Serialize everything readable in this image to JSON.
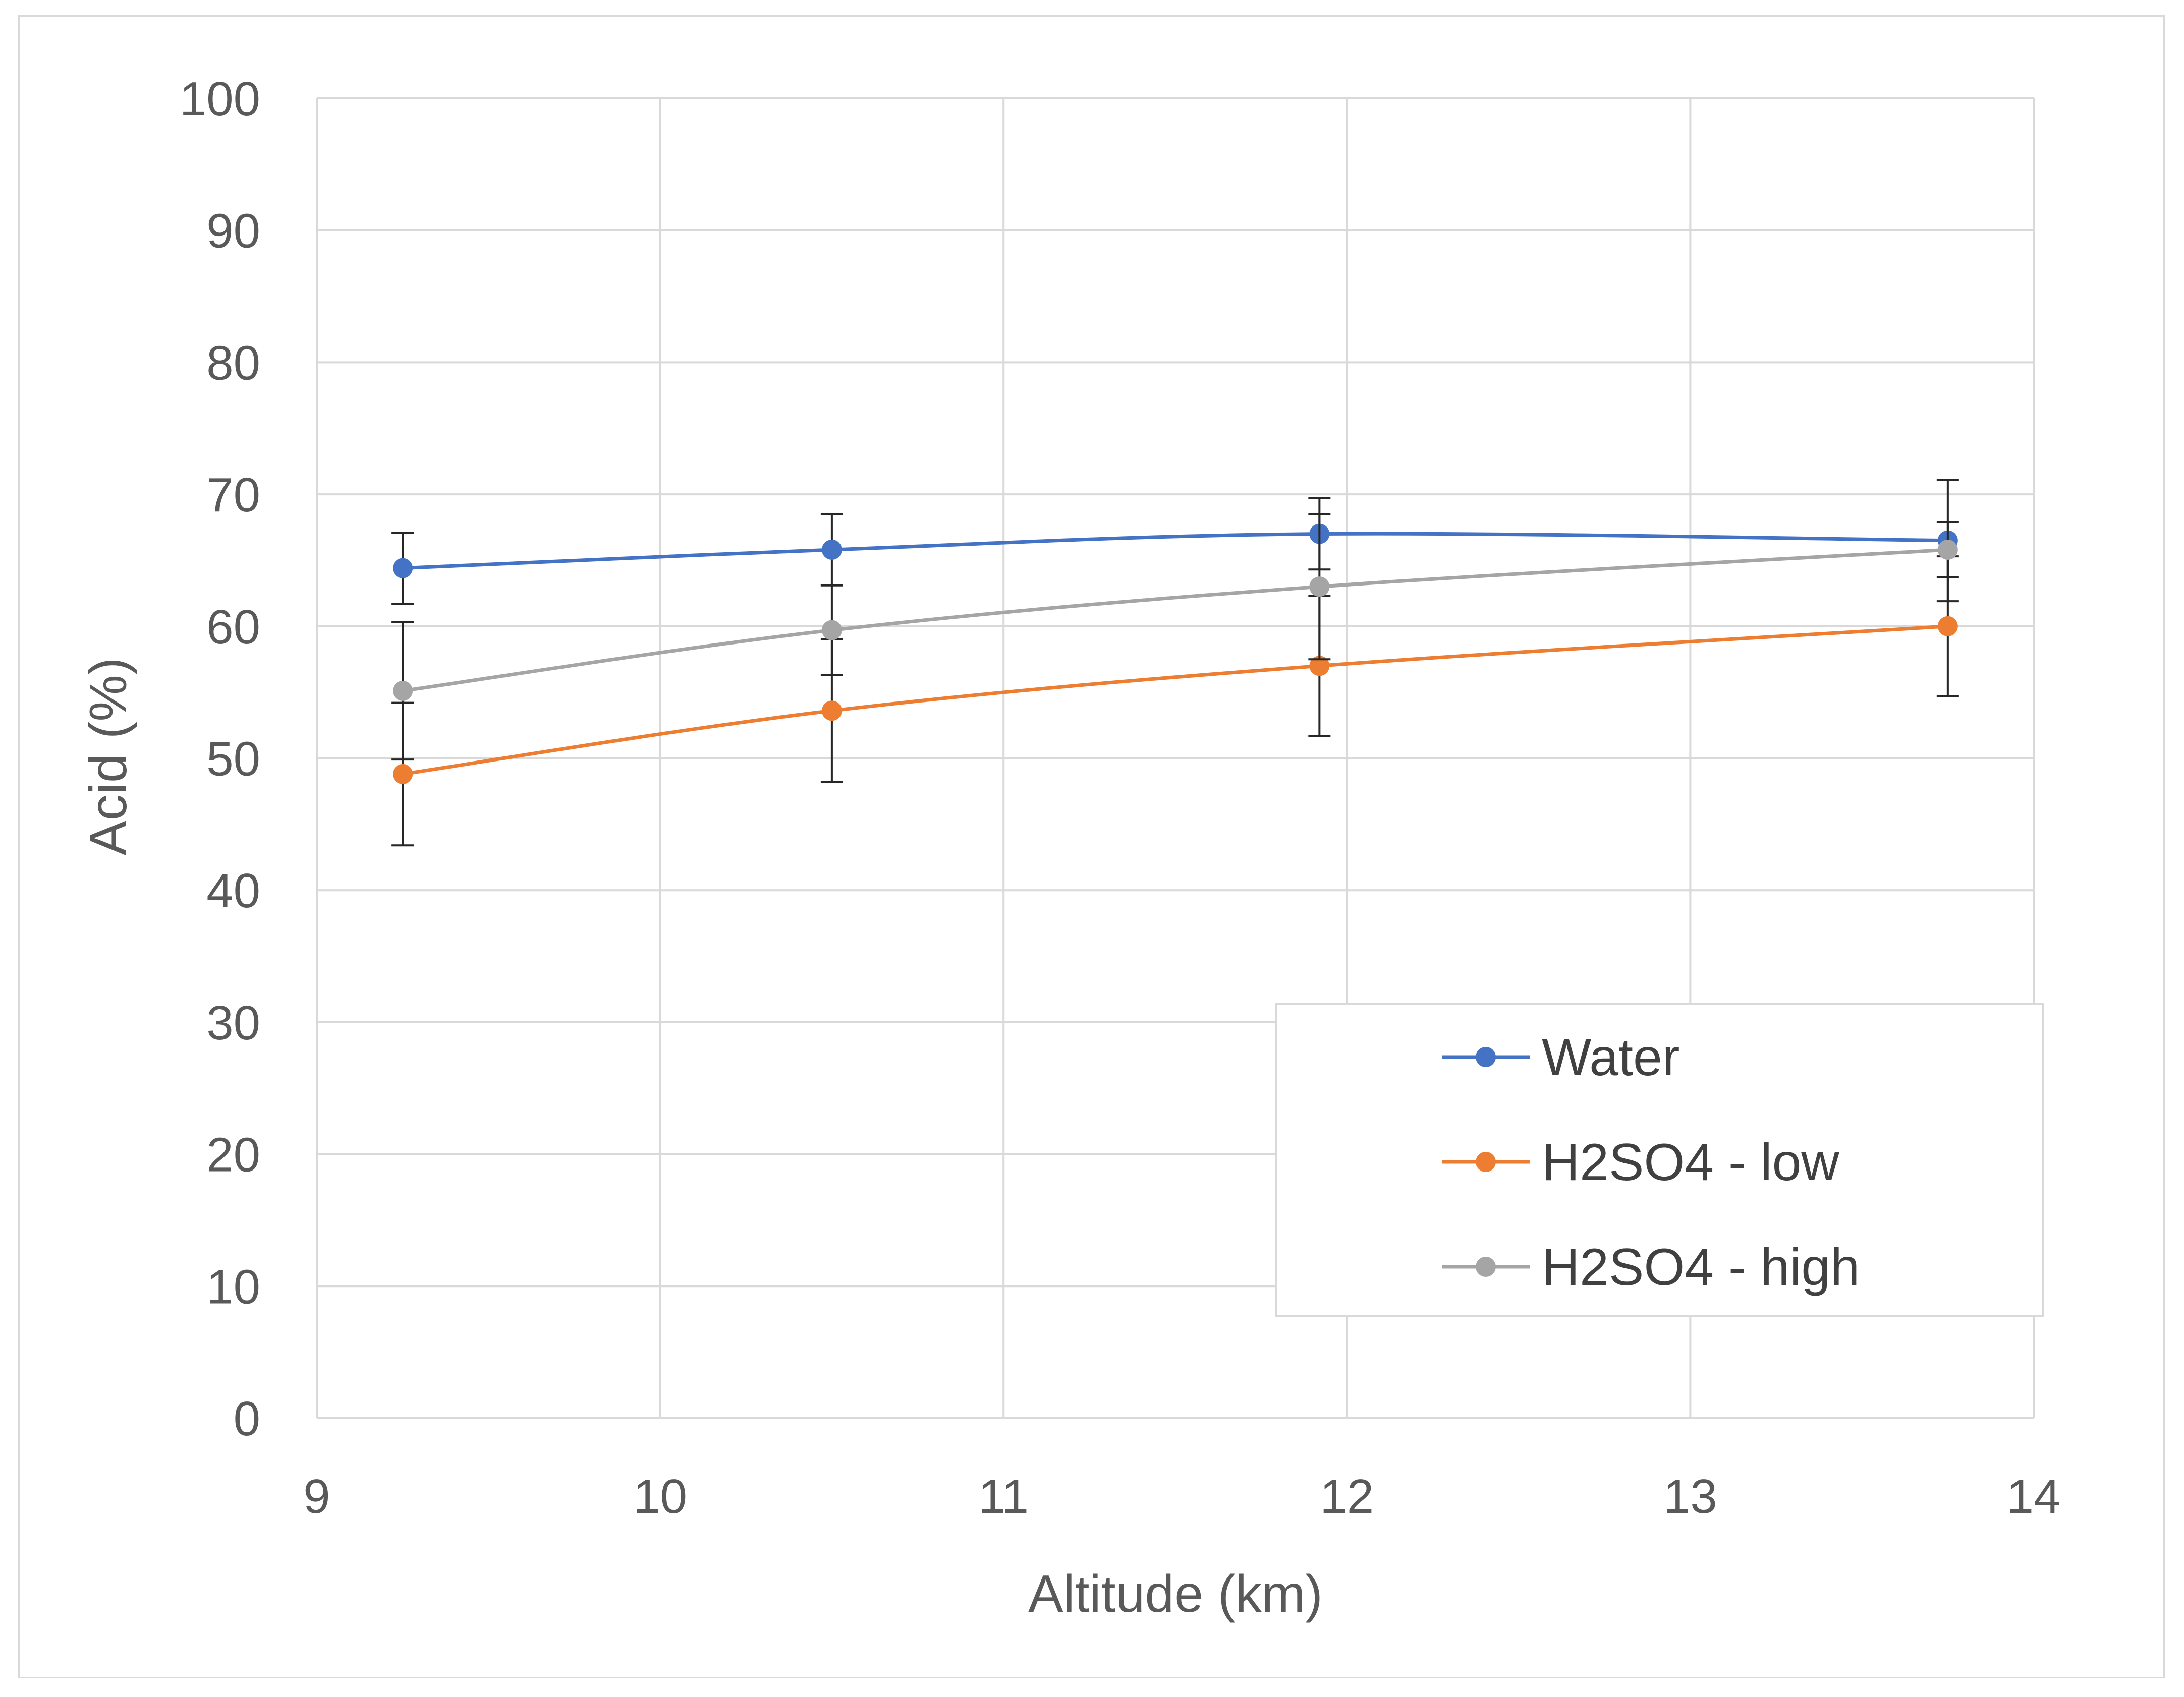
{
  "chart_data": {
    "type": "line",
    "title": "",
    "xlabel": "Altitude (km)",
    "ylabel": "Acid (%)",
    "xlim": [
      9,
      14
    ],
    "ylim": [
      0,
      100
    ],
    "xticks": [
      "9",
      "10",
      "11",
      "12",
      "13",
      "14"
    ],
    "yticks": [
      "0",
      "10",
      "20",
      "30",
      "40",
      "50",
      "60",
      "70",
      "80",
      "90",
      "100"
    ],
    "grid": true,
    "legend_position": "bottom-right",
    "x": [
      9.25,
      10.5,
      11.92,
      13.75
    ],
    "series": [
      {
        "name": "Water",
        "color": "#4472c4",
        "values": [
          64.4,
          65.8,
          67.0,
          66.5
        ],
        "error": [
          2.7,
          2.7,
          2.7,
          4.6
        ]
      },
      {
        "name": "H2SO4 - low",
        "color": "#ed7d31",
        "values": [
          48.8,
          53.6,
          57.0,
          60.0
        ],
        "error": [
          5.4,
          5.4,
          5.3,
          5.3
        ]
      },
      {
        "name": "H2SO4 - high",
        "color": "#a5a5a5",
        "values": [
          55.1,
          59.7,
          63.0,
          65.8
        ],
        "error": [
          5.2,
          3.4,
          5.5,
          2.1
        ]
      }
    ]
  }
}
